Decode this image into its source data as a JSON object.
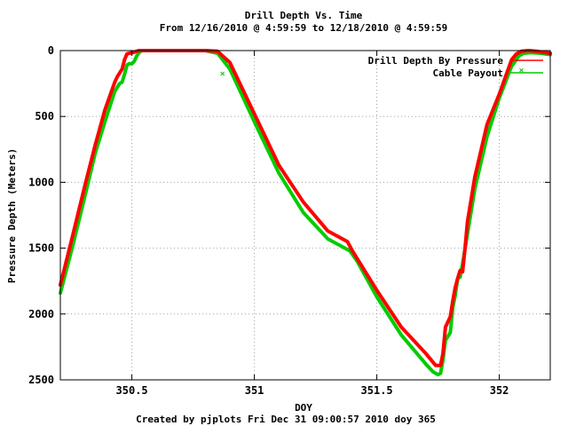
{
  "chart_data": {
    "type": "line",
    "title": "Drill Depth Vs. Time",
    "subtitle": "From 12/16/2010 @ 4:59:59 to 12/18/2010 @ 4:59:59",
    "xlabel": "DOY",
    "ylabel": "Pressure Depth (Meters)",
    "footer": "Created by pjplots Fri Dec 31 09:00:57 2010 doy 365",
    "xlim": [
      350.208,
      352.208
    ],
    "ylim": [
      2500,
      0
    ],
    "y_inverted": true,
    "grid": true,
    "legend_position": "top-right",
    "x_ticks": [
      {
        "value": 350.5,
        "label": "350.5"
      },
      {
        "value": 351,
        "label": "351"
      },
      {
        "value": 351.5,
        "label": "351.5"
      },
      {
        "value": 352,
        "label": "352"
      }
    ],
    "y_ticks": [
      {
        "value": 0,
        "label": "0"
      },
      {
        "value": 500,
        "label": "500"
      },
      {
        "value": 1000,
        "label": "1000"
      },
      {
        "value": 1500,
        "label": "1500"
      },
      {
        "value": 2000,
        "label": "2000"
      },
      {
        "value": 2500,
        "label": "2500"
      }
    ],
    "series": [
      {
        "name": "Drill Depth By Pressure",
        "color": "#ff0000",
        "x": [
          350.208,
          350.26,
          350.31,
          350.35,
          350.39,
          350.43,
          350.44,
          350.46,
          350.47,
          350.48,
          350.49,
          350.505,
          350.52,
          350.53,
          350.54,
          350.6,
          350.7,
          350.8,
          350.85,
          350.87,
          350.9,
          351.0,
          351.1,
          351.2,
          351.3,
          351.38,
          351.4,
          351.5,
          351.6,
          351.7,
          351.74,
          351.76,
          351.77,
          351.78,
          351.8,
          351.81,
          351.82,
          351.83,
          351.84,
          351.85,
          351.86,
          351.87,
          351.9,
          351.95,
          352.0,
          352.05,
          352.07,
          352.09,
          352.12,
          352.15,
          352.208
        ],
        "y": [
          1780,
          1390,
          1010,
          720,
          450,
          240,
          200,
          140,
          70,
          25,
          20,
          15,
          5,
          0,
          0,
          0,
          0,
          0,
          5,
          40,
          90,
          480,
          870,
          1150,
          1370,
          1450,
          1520,
          1820,
          2100,
          2300,
          2390,
          2390,
          2300,
          2100,
          2020,
          1900,
          1800,
          1730,
          1670,
          1680,
          1500,
          1300,
          960,
          560,
          330,
          70,
          25,
          5,
          0,
          5,
          20
        ]
      },
      {
        "name": "Cable Payout",
        "color": "#00cc00",
        "x": [
          350.208,
          350.26,
          350.31,
          350.35,
          350.39,
          350.43,
          350.45,
          350.46,
          350.47,
          350.48,
          350.49,
          350.5,
          350.51,
          350.52,
          350.53,
          350.54,
          350.6,
          350.7,
          350.8,
          350.85,
          350.9,
          351.0,
          351.1,
          351.2,
          351.3,
          351.39,
          351.42,
          351.5,
          351.6,
          351.7,
          351.73,
          351.75,
          351.76,
          351.77,
          351.78,
          351.8,
          351.81,
          351.82,
          351.83,
          351.84,
          351.85,
          351.9,
          351.95,
          352.0,
          352.05,
          352.08,
          352.1,
          352.13,
          352.17,
          352.208
        ],
        "y": [
          1840,
          1470,
          1090,
          780,
          540,
          310,
          250,
          240,
          180,
          110,
          100,
          100,
          80,
          40,
          15,
          0,
          0,
          0,
          0,
          20,
          140,
          540,
          930,
          1230,
          1430,
          1520,
          1600,
          1870,
          2160,
          2380,
          2440,
          2460,
          2450,
          2350,
          2200,
          2140,
          1950,
          1860,
          1730,
          1720,
          1620,
          1050,
          650,
          360,
          120,
          40,
          20,
          15,
          20,
          30
        ]
      }
    ],
    "outlier_points": [
      {
        "series": "Cable Payout",
        "x": 350.87,
        "y": 175
      },
      {
        "series": "Cable Payout",
        "x": 352.09,
        "y": 150
      }
    ]
  }
}
